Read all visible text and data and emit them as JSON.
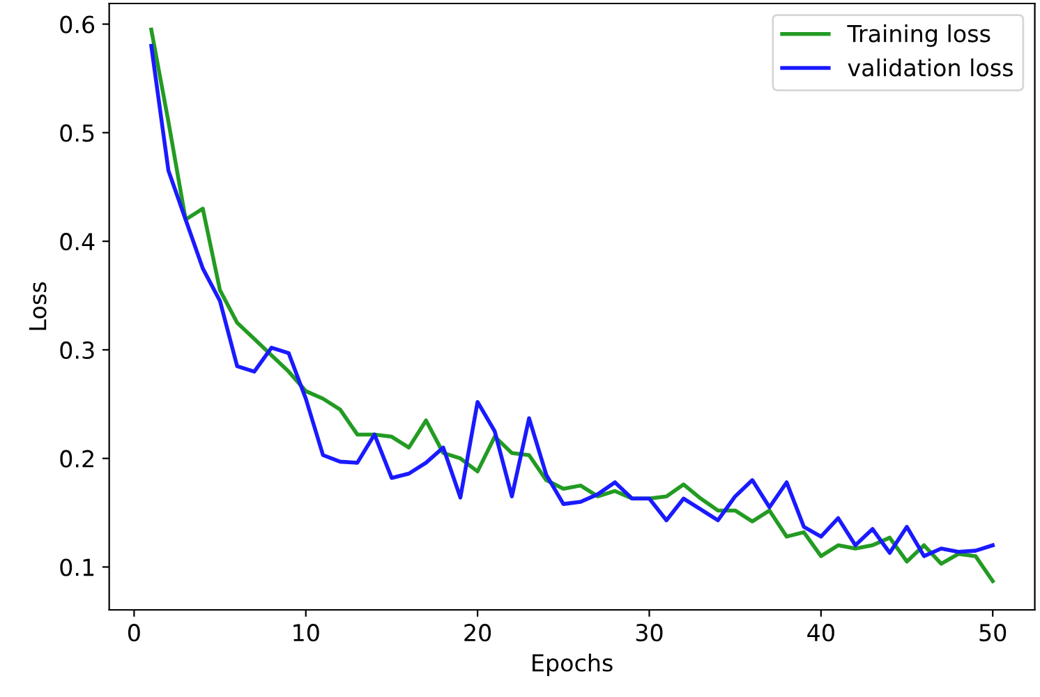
{
  "chart_data": {
    "type": "line",
    "xlabel": "Epochs",
    "ylabel": "Loss",
    "x": [
      1,
      2,
      3,
      4,
      5,
      6,
      7,
      8,
      9,
      10,
      11,
      12,
      13,
      14,
      15,
      16,
      17,
      18,
      19,
      20,
      21,
      22,
      23,
      24,
      25,
      26,
      27,
      28,
      29,
      30,
      31,
      32,
      33,
      34,
      35,
      36,
      37,
      38,
      39,
      40,
      41,
      42,
      43,
      44,
      45,
      46,
      47,
      48,
      49,
      50
    ],
    "series": [
      {
        "name": "Training loss",
        "color": "#239b23",
        "values": [
          0.595,
          0.51,
          0.42,
          0.43,
          0.355,
          0.325,
          0.31,
          0.295,
          0.28,
          0.262,
          0.255,
          0.245,
          0.222,
          0.222,
          0.22,
          0.21,
          0.235,
          0.205,
          0.2,
          0.188,
          0.22,
          0.205,
          0.203,
          0.18,
          0.172,
          0.175,
          0.165,
          0.17,
          0.163,
          0.163,
          0.165,
          0.176,
          0.163,
          0.152,
          0.152,
          0.142,
          0.152,
          0.128,
          0.132,
          0.11,
          0.12,
          0.117,
          0.12,
          0.127,
          0.105,
          0.12,
          0.103,
          0.112,
          0.11,
          0.087
        ]
      },
      {
        "name": "validation loss",
        "color": "#1a1aff",
        "values": [
          0.58,
          0.465,
          0.42,
          0.375,
          0.345,
          0.285,
          0.28,
          0.302,
          0.297,
          0.255,
          0.203,
          0.197,
          0.196,
          0.222,
          0.182,
          0.186,
          0.196,
          0.21,
          0.164,
          0.252,
          0.225,
          0.165,
          0.237,
          0.185,
          0.158,
          0.16,
          0.167,
          0.178,
          0.163,
          0.163,
          0.143,
          0.163,
          0.153,
          0.143,
          0.165,
          0.18,
          0.155,
          0.178,
          0.137,
          0.128,
          0.145,
          0.12,
          0.135,
          0.113,
          0.137,
          0.11,
          0.117,
          0.114,
          0.115,
          0.12
        ]
      }
    ],
    "xlim": [
      -1.45,
      52.45
    ],
    "ylim": [
      0.0605,
      0.619
    ],
    "xticks": [
      0,
      10,
      20,
      30,
      40,
      50
    ],
    "yticks": [
      0.1,
      0.2,
      0.3,
      0.4,
      0.5,
      0.6
    ],
    "grid": false,
    "legend": "top right",
    "marker": "none",
    "line_style": "solid"
  }
}
